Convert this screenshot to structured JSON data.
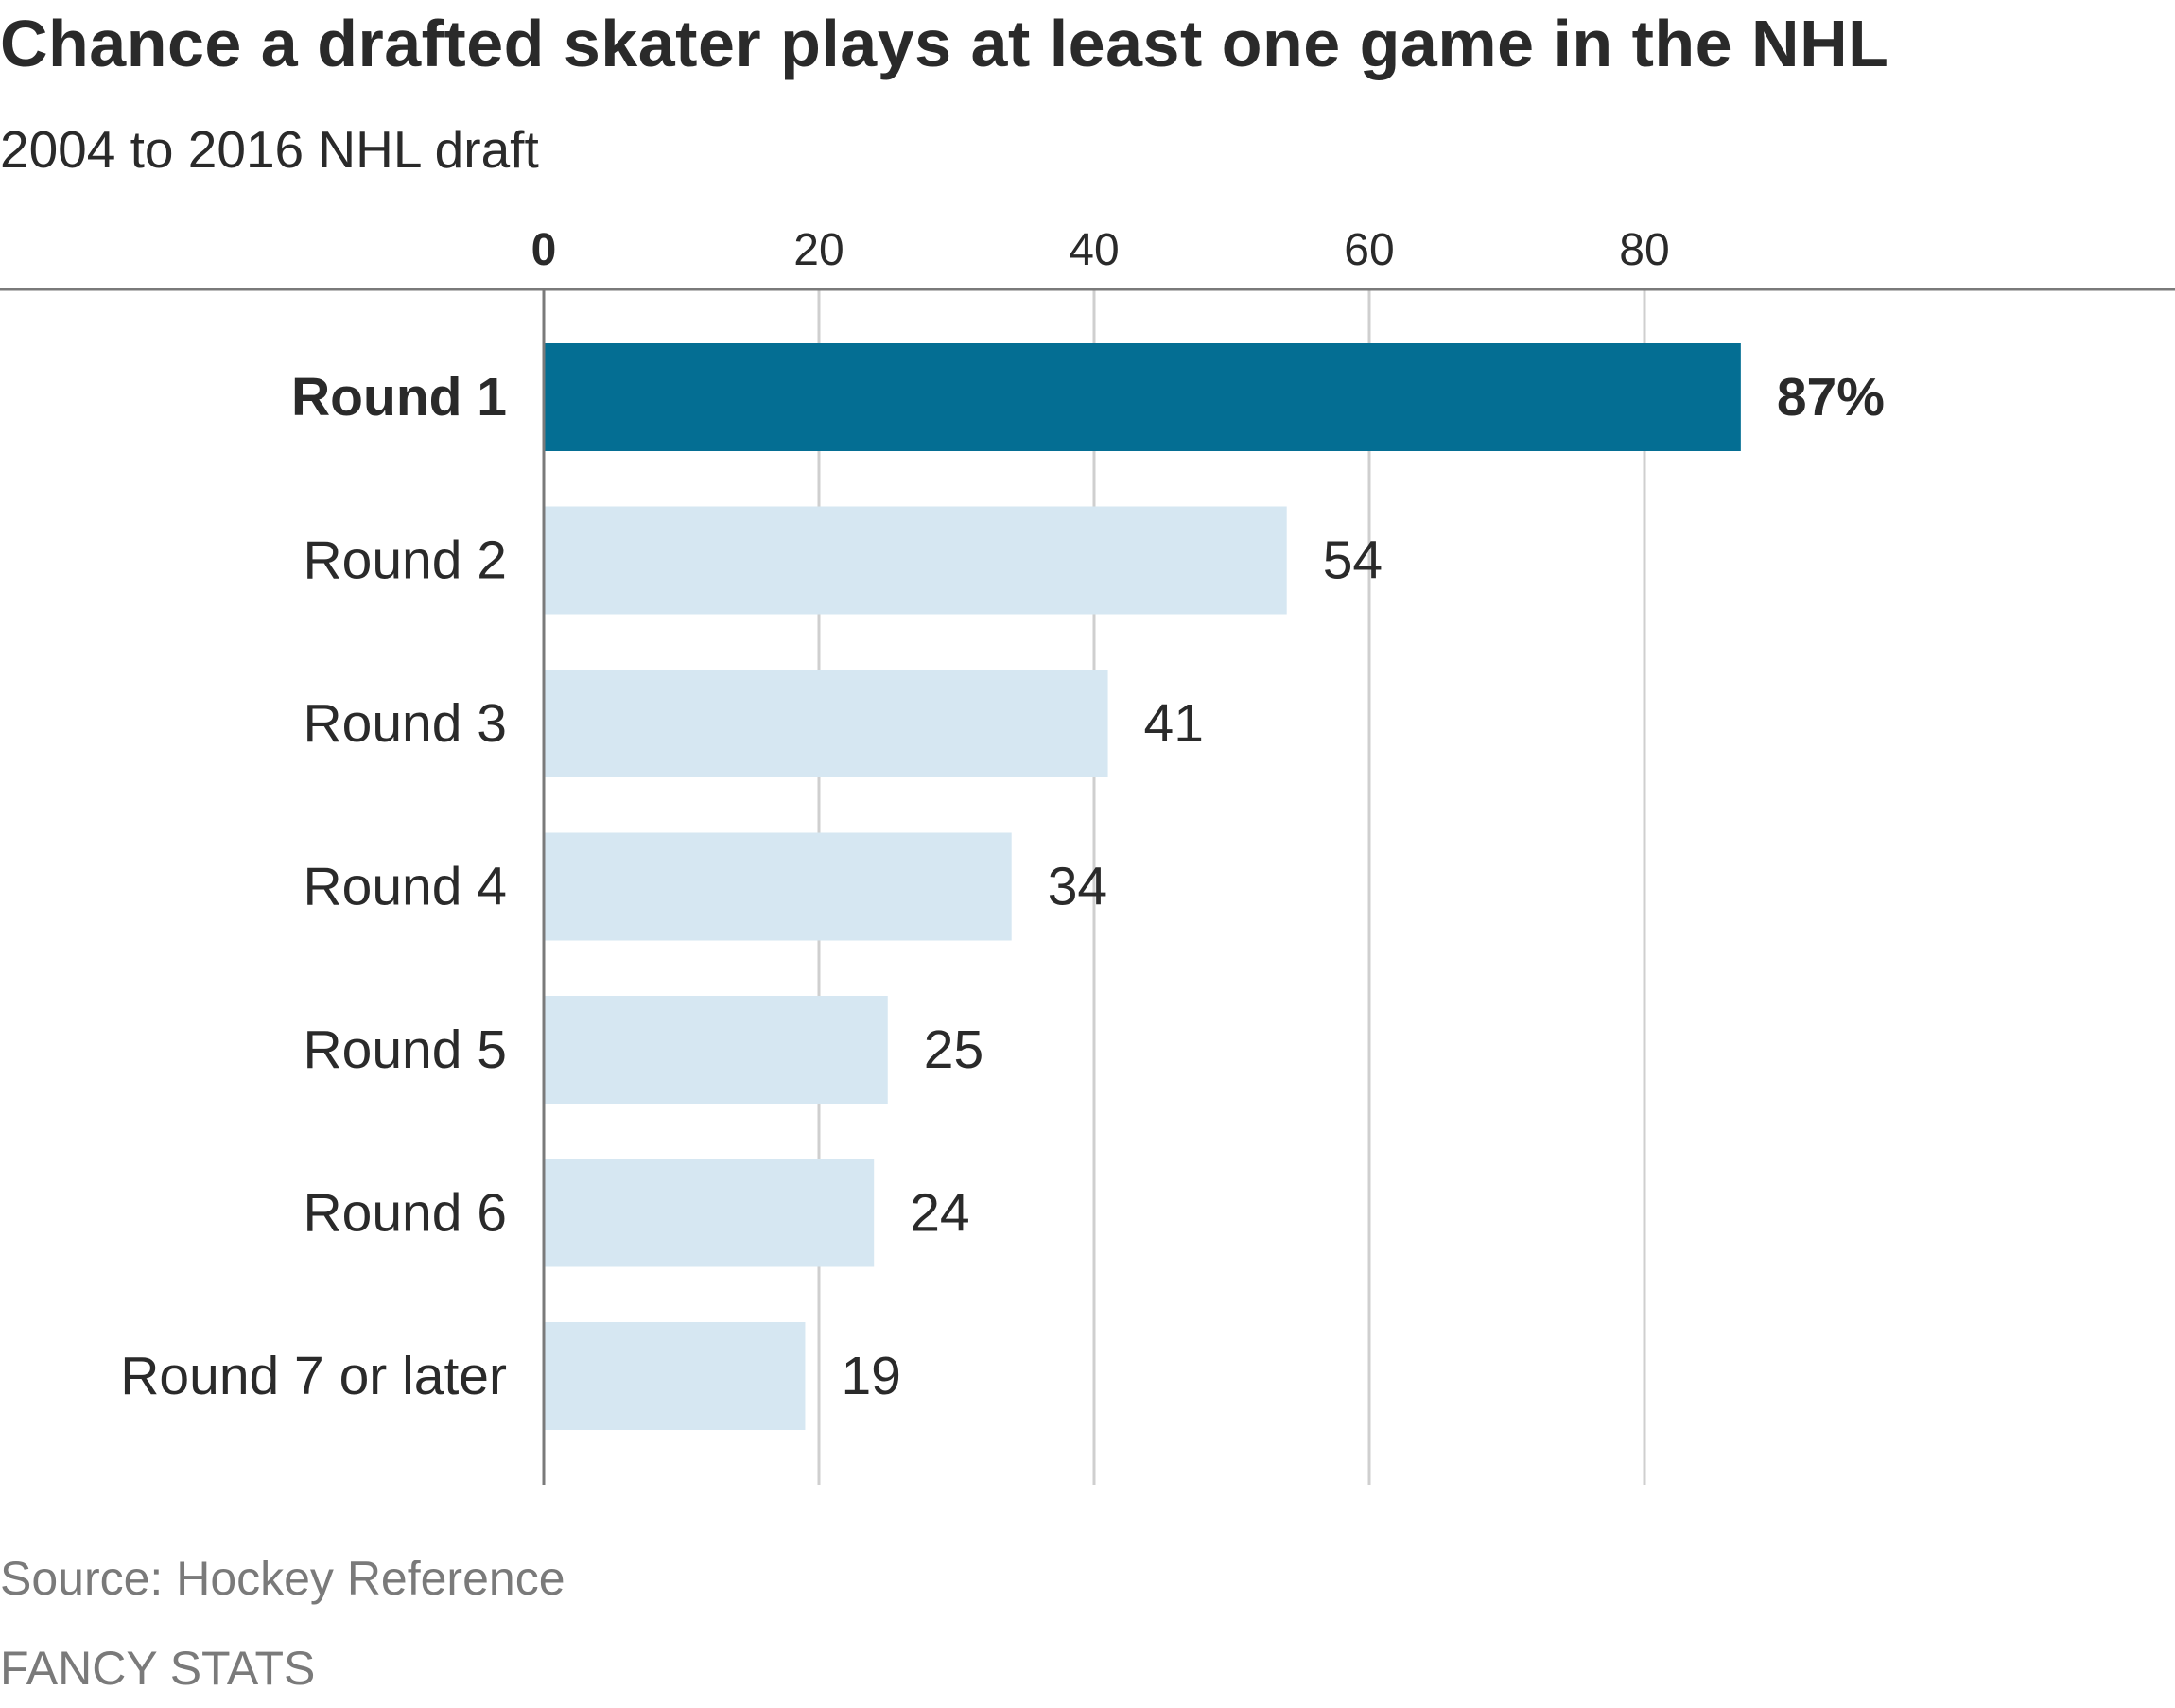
{
  "chart_data": {
    "type": "bar",
    "orientation": "horizontal",
    "title": "Chance a drafted skater plays at least one game in the NHL",
    "subtitle": "2004 to 2016 NHL draft",
    "categories": [
      "Round 1",
      "Round 2",
      "Round 3",
      "Round 4",
      "Round 5",
      "Round 6",
      "Round 7 or later"
    ],
    "values": [
      87,
      54,
      41,
      34,
      25,
      24,
      19
    ],
    "value_labels": [
      "87%",
      "54",
      "41",
      "34",
      "25",
      "24",
      "19"
    ],
    "highlighted_category": "Round 1",
    "x_ticks": [
      0,
      20,
      40,
      60,
      80
    ],
    "x_tick_labels": [
      "0",
      "20",
      "40",
      "60",
      "80"
    ],
    "xlim": [
      0,
      100
    ],
    "grid": true,
    "axis_position": "top",
    "colors": {
      "highlight": "#046e93",
      "bar": "#d6e7f2",
      "gridline": "#cfcfcf",
      "axis": "#7a7a7a"
    }
  },
  "source": "Source: Hockey Reference",
  "credit": "FANCY STATS"
}
